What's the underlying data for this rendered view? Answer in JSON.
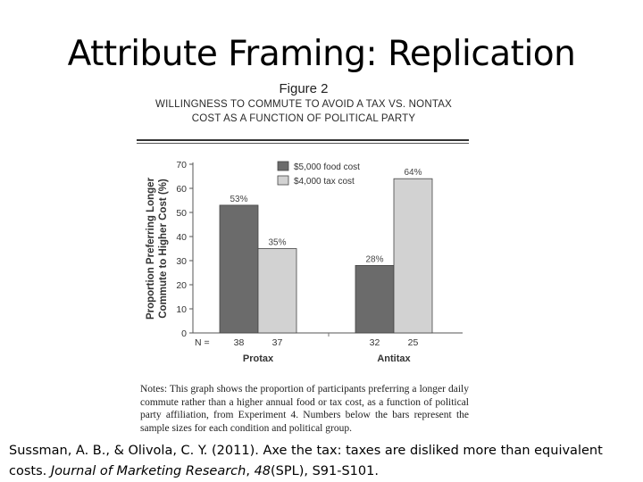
{
  "slide": {
    "title": "Attribute Framing: Replication"
  },
  "figure": {
    "label": "Figure 2",
    "title_line1": "WILLINGNESS TO COMMUTE TO AVOID A TAX VS. NONTAX",
    "title_line2": "COST AS A FUNCTION OF POLITICAL PARTY",
    "notes": "Notes: This graph shows the proportion of participants preferring a longer daily commute rather than a higher annual food or tax cost, as a function of political party affiliation, from Experiment 4. Numbers below the bars represent the sample sizes for each condition and political group."
  },
  "chart_data": {
    "type": "bar",
    "title": "",
    "ylabel_line1": "Proportion Preferring Longer",
    "ylabel_line2": "Commute to Higher Cost (%)",
    "xlabel": "",
    "ylim": [
      0,
      70
    ],
    "yticks": [
      0,
      10,
      20,
      30,
      40,
      50,
      60,
      70
    ],
    "categories": [
      "Protax",
      "Antitax"
    ],
    "n_label": "N =",
    "series": [
      {
        "name": "$5,000 food cost",
        "values": [
          53,
          28
        ],
        "labels": [
          "53%",
          "28%"
        ],
        "n": [
          "38",
          "32"
        ],
        "color": "#6b6b6b"
      },
      {
        "name": "$4,000 tax cost",
        "values": [
          35,
          64
        ],
        "labels": [
          "35%",
          "64%"
        ],
        "n": [
          "37",
          "25"
        ],
        "color": "#d2d2d2"
      }
    ],
    "legend_position": "top-left",
    "grid": false
  },
  "citation": {
    "authors": "Sussman, A. B., & Olivola, C. Y. (2011). Axe the tax: taxes are disliked more than equivalent costs. ",
    "journal": "Journal of Marketing Research",
    "sep1": ", ",
    "volume": "48",
    "issue_pages": "(SPL), S91-S101."
  }
}
